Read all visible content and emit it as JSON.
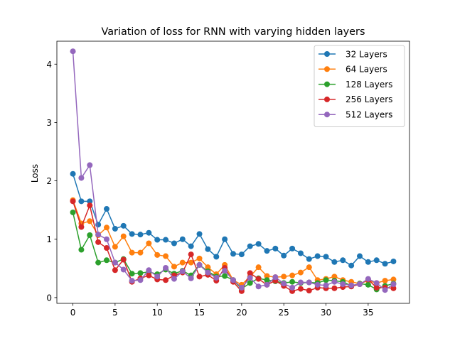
{
  "chart_data": {
    "type": "line",
    "title": "Variation of loss for RNN with varying hidden layers",
    "xlabel": "",
    "ylabel": "Loss",
    "xlim": [
      -1.9,
      39.9
    ],
    "ylim": [
      -0.0987,
      4.393
    ],
    "xticks": [
      0,
      5,
      10,
      15,
      20,
      25,
      30,
      35
    ],
    "yticks": [
      0,
      1,
      2,
      3,
      4
    ],
    "grid": false,
    "legend_position": "top-right",
    "x": [
      0,
      1,
      2,
      3,
      4,
      5,
      6,
      7,
      8,
      9,
      10,
      11,
      12,
      13,
      14,
      15,
      16,
      17,
      18,
      19,
      20,
      21,
      22,
      23,
      24,
      25,
      26,
      27,
      28,
      29,
      30,
      31,
      32,
      33,
      34,
      35,
      36,
      37,
      38
    ],
    "series": [
      {
        "name": "32 Layers",
        "color": "#1f77b4",
        "values": [
          2.12,
          1.65,
          1.65,
          1.25,
          1.52,
          1.18,
          1.23,
          1.09,
          1.08,
          1.11,
          0.99,
          0.99,
          0.93,
          1.0,
          0.88,
          1.09,
          0.83,
          0.7,
          1.0,
          0.75,
          0.74,
          0.88,
          0.92,
          0.8,
          0.84,
          0.72,
          0.84,
          0.76,
          0.66,
          0.71,
          0.7,
          0.61,
          0.64,
          0.55,
          0.71,
          0.61,
          0.64,
          0.58,
          0.62
        ]
      },
      {
        "name": "64 Layers",
        "color": "#ff7f0e",
        "values": [
          1.67,
          1.27,
          1.31,
          1.07,
          1.2,
          0.87,
          1.05,
          0.77,
          0.77,
          0.93,
          0.73,
          0.71,
          0.53,
          0.6,
          0.6,
          0.67,
          0.52,
          0.4,
          0.56,
          0.3,
          0.22,
          0.36,
          0.52,
          0.37,
          0.35,
          0.36,
          0.38,
          0.43,
          0.52,
          0.3,
          0.32,
          0.36,
          0.3,
          0.27,
          0.24,
          0.29,
          0.25,
          0.29,
          0.31
        ]
      },
      {
        "name": "128 Layers",
        "color": "#2ca02c",
        "values": [
          1.46,
          0.82,
          1.07,
          0.6,
          0.64,
          0.6,
          0.66,
          0.41,
          0.42,
          0.44,
          0.4,
          0.48,
          0.41,
          0.46,
          0.38,
          0.56,
          0.45,
          0.36,
          0.37,
          0.3,
          0.15,
          0.25,
          0.33,
          0.3,
          0.28,
          0.25,
          0.27,
          0.25,
          0.26,
          0.25,
          0.3,
          0.29,
          0.27,
          0.2,
          0.24,
          0.22,
          0.14,
          0.2,
          0.24
        ]
      },
      {
        "name": "256 Layers",
        "color": "#d62728",
        "values": [
          1.65,
          1.21,
          1.58,
          0.95,
          0.85,
          0.47,
          0.65,
          0.27,
          0.33,
          0.38,
          0.31,
          0.3,
          0.38,
          0.43,
          0.74,
          0.36,
          0.39,
          0.29,
          0.51,
          0.27,
          0.11,
          0.42,
          0.32,
          0.22,
          0.29,
          0.2,
          0.11,
          0.15,
          0.12,
          0.17,
          0.16,
          0.16,
          0.18,
          0.19,
          0.23,
          0.31,
          0.17,
          0.17,
          0.16
        ]
      },
      {
        "name": "512 Layers",
        "color": "#9467bd",
        "values": [
          4.22,
          2.05,
          2.27,
          1.08,
          1.0,
          0.6,
          0.48,
          0.29,
          0.3,
          0.47,
          0.36,
          0.51,
          0.32,
          0.45,
          0.33,
          0.56,
          0.43,
          0.34,
          0.46,
          0.3,
          0.17,
          0.34,
          0.19,
          0.22,
          0.35,
          0.24,
          0.17,
          0.26,
          0.26,
          0.22,
          0.21,
          0.27,
          0.23,
          0.21,
          0.23,
          0.32,
          0.25,
          0.13,
          0.23
        ]
      }
    ]
  }
}
